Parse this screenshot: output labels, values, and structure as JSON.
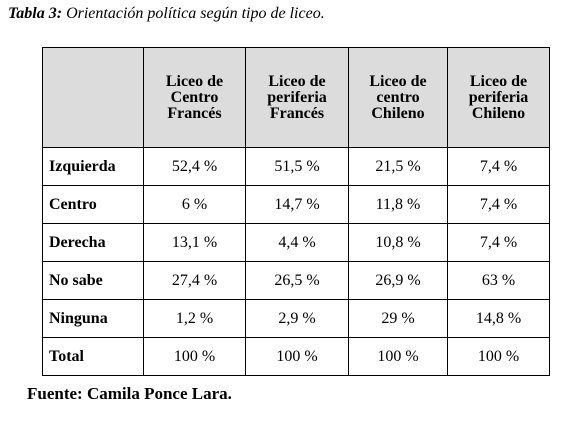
{
  "caption": {
    "label": "Tabla 3:",
    "text": "Orientación política según tipo de liceo."
  },
  "table": {
    "columns": [
      "Liceo de Centro Francés",
      "Liceo de periferia Francés",
      "Liceo de centro Chileno",
      "Liceo de periferia Chileno"
    ],
    "rows": [
      {
        "label": "Izquierda",
        "values": [
          "52,4 %",
          "51,5 %",
          "21,5 %",
          "7,4 %"
        ]
      },
      {
        "label": "Centro",
        "values": [
          "6 %",
          "14,7 %",
          "11,8 %",
          "7,4 %"
        ]
      },
      {
        "label": "Derecha",
        "values": [
          "13,1 %",
          "4,4 %",
          "10,8 %",
          "7,4 %"
        ]
      },
      {
        "label": "No sabe",
        "values": [
          "27,4 %",
          "26,5 %",
          "26,9 %",
          "63 %"
        ]
      },
      {
        "label": "Ninguna",
        "values": [
          "1,2 %",
          "2,9 %",
          "29 %",
          "14,8 %"
        ]
      },
      {
        "label": "Total",
        "values": [
          "100 %",
          "100 %",
          "100 %",
          "100 %"
        ]
      }
    ],
    "header_background": "#dcdcdc"
  },
  "source": "Fuente: Camila Ponce Lara."
}
